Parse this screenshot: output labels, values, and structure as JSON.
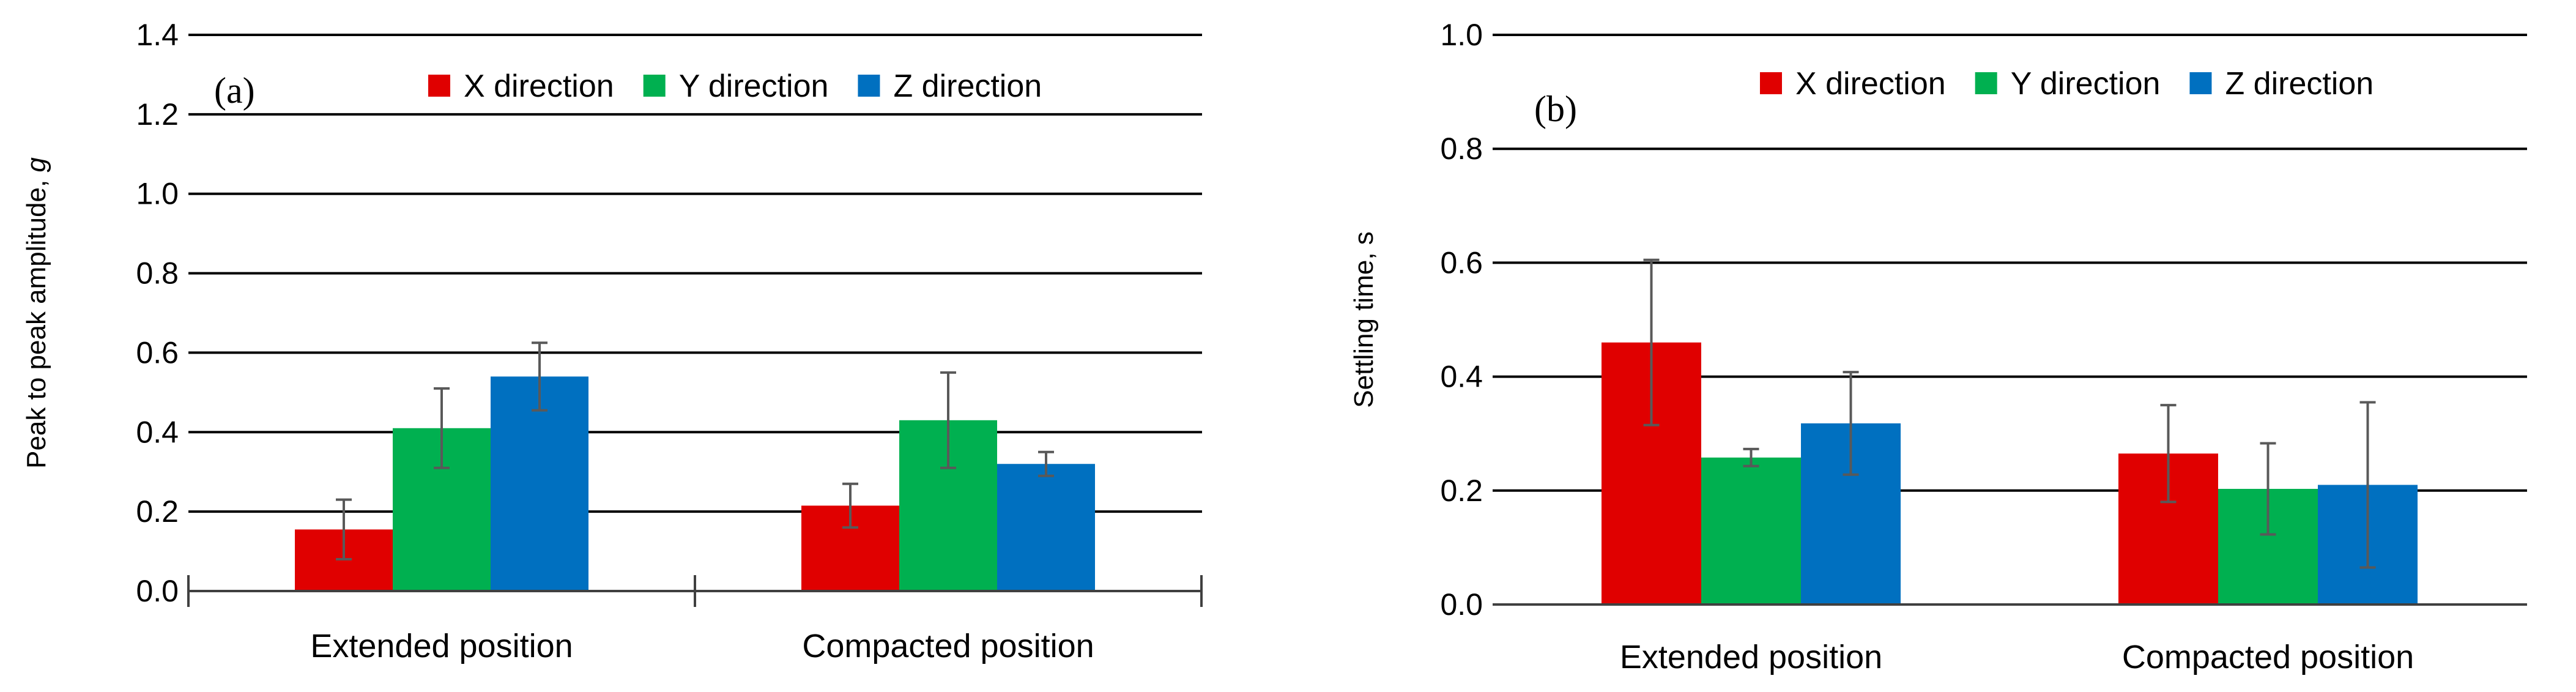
{
  "colors": {
    "x": "#e00000",
    "y": "#00b050",
    "z": "#0070c0",
    "grid": "#000000",
    "axis": "#404040",
    "errorbar": "#595959",
    "text": "#000000"
  },
  "legend_icons": [
    "square-swatch",
    "square-swatch",
    "square-swatch"
  ],
  "chart_data": [
    {
      "type": "bar",
      "panel_label": "(a)",
      "title": "",
      "xlabel": "",
      "ylabel": "Peak to peak amplitude, g",
      "ylabel_parts": {
        "main": "Peak to peak amplitude, ",
        "unit": "g"
      },
      "ylim": [
        0,
        1.4
      ],
      "yticks": [
        0,
        0.2,
        0.4,
        0.6,
        0.8,
        1.0,
        1.2,
        1.4
      ],
      "ytick_labels": [
        "0.0",
        "0.2",
        "0.4",
        "0.6",
        "0.8",
        "1.0",
        "1.2",
        "1.4"
      ],
      "grid": true,
      "legend_position": "top-right",
      "categories": [
        "Extended position",
        "Compacted position"
      ],
      "series": [
        {
          "name": "X direction",
          "color_key": "x",
          "values": [
            0.155,
            0.215
          ],
          "errors": [
            0.075,
            0.055
          ]
        },
        {
          "name": "Y direction",
          "color_key": "y",
          "values": [
            0.41,
            0.43
          ],
          "errors": [
            0.1,
            0.12
          ]
        },
        {
          "name": "Z direction",
          "color_key": "z",
          "values": [
            0.54,
            0.32
          ],
          "errors": [
            0.085,
            0.03
          ]
        }
      ]
    },
    {
      "type": "bar",
      "panel_label": "(b)",
      "title": "",
      "xlabel": "",
      "ylabel": "Settling time, s",
      "ylabel_parts": {
        "main": "Settling time, s",
        "unit": ""
      },
      "ylim": [
        0,
        1.0
      ],
      "yticks": [
        0,
        0.2,
        0.4,
        0.6,
        0.8,
        1.0
      ],
      "ytick_labels": [
        "0.0",
        "0.2",
        "0.4",
        "0.6",
        "0.8",
        "1.0"
      ],
      "grid": true,
      "legend_position": "top-right",
      "categories": [
        "Extended position",
        "Compacted position"
      ],
      "series": [
        {
          "name": "X direction",
          "color_key": "x",
          "values": [
            0.46,
            0.265
          ],
          "errors": [
            0.145,
            0.085
          ]
        },
        {
          "name": "Y direction",
          "color_key": "y",
          "values": [
            0.258,
            0.203
          ],
          "errors": [
            0.015,
            0.08
          ]
        },
        {
          "name": "Z direction",
          "color_key": "z",
          "values": [
            0.318,
            0.21
          ],
          "errors": [
            0.09,
            0.145
          ]
        }
      ]
    }
  ]
}
